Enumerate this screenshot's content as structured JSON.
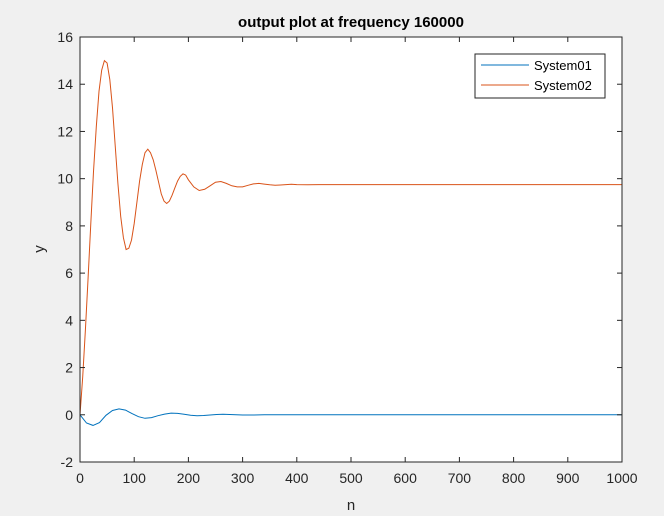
{
  "chart_data": {
    "type": "line",
    "title": "output plot at frequency 160000",
    "xlabel": "n",
    "ylabel": "y",
    "xlim": [
      0,
      1000
    ],
    "ylim": [
      -2,
      16
    ],
    "xticks": [
      0,
      100,
      200,
      300,
      400,
      500,
      600,
      700,
      800,
      900,
      1000
    ],
    "yticks": [
      -2,
      0,
      2,
      4,
      6,
      8,
      10,
      12,
      14,
      16
    ],
    "grid": false,
    "legend_position": "top-right",
    "series": [
      {
        "name": "System01",
        "color": "#0072BD",
        "x": [
          0,
          12,
          24,
          36,
          48,
          60,
          72,
          84,
          96,
          108,
          120,
          132,
          144,
          156,
          168,
          180,
          192,
          204,
          216,
          228,
          240,
          252,
          264,
          276,
          288,
          300,
          320,
          340,
          360,
          380,
          400,
          450,
          500,
          550,
          600,
          650,
          700,
          750,
          800,
          850,
          900,
          950,
          1000
        ],
        "y": [
          0,
          -0.35,
          -0.45,
          -0.33,
          -0.02,
          0.18,
          0.25,
          0.2,
          0.05,
          -0.08,
          -0.15,
          -0.12,
          -0.04,
          0.03,
          0.07,
          0.06,
          0.02,
          -0.02,
          -0.04,
          -0.03,
          -0.01,
          0.01,
          0.02,
          0.01,
          0.0,
          -0.01,
          -0.01,
          0.0,
          0.0,
          0.0,
          0.0,
          0.0,
          0.0,
          0.0,
          0.0,
          0.0,
          0.0,
          0.0,
          0.0,
          0.0,
          0.0,
          0.0,
          0.0
        ]
      },
      {
        "name": "System02",
        "color": "#D95319",
        "x": [
          0,
          5,
          10,
          15,
          20,
          25,
          30,
          35,
          40,
          45,
          50,
          55,
          60,
          65,
          70,
          75,
          80,
          85,
          90,
          95,
          100,
          105,
          110,
          115,
          120,
          125,
          130,
          135,
          140,
          145,
          150,
          155,
          160,
          165,
          170,
          175,
          180,
          185,
          190,
          195,
          200,
          210,
          220,
          230,
          240,
          250,
          260,
          270,
          280,
          290,
          300,
          310,
          320,
          330,
          340,
          350,
          360,
          370,
          380,
          390,
          400,
          420,
          440,
          460,
          480,
          500,
          550,
          600,
          650,
          700,
          750,
          800,
          850,
          900,
          950,
          1000
        ],
        "y": [
          0,
          1.6,
          3.6,
          5.8,
          8.1,
          10.3,
          12.2,
          13.7,
          14.6,
          15.0,
          14.9,
          14.2,
          13.0,
          11.4,
          9.8,
          8.4,
          7.5,
          7.0,
          7.05,
          7.4,
          8.1,
          9.0,
          9.9,
          10.6,
          11.1,
          11.25,
          11.1,
          10.8,
          10.35,
          9.85,
          9.35,
          9.05,
          8.95,
          9.05,
          9.3,
          9.6,
          9.9,
          10.1,
          10.2,
          10.15,
          9.95,
          9.65,
          9.5,
          9.55,
          9.7,
          9.85,
          9.88,
          9.8,
          9.7,
          9.65,
          9.65,
          9.72,
          9.78,
          9.8,
          9.77,
          9.74,
          9.72,
          9.73,
          9.75,
          9.76,
          9.75,
          9.74,
          9.75,
          9.75,
          9.75,
          9.75,
          9.75,
          9.75,
          9.75,
          9.75,
          9.75,
          9.75,
          9.75,
          9.75,
          9.75,
          9.75
        ]
      }
    ]
  }
}
